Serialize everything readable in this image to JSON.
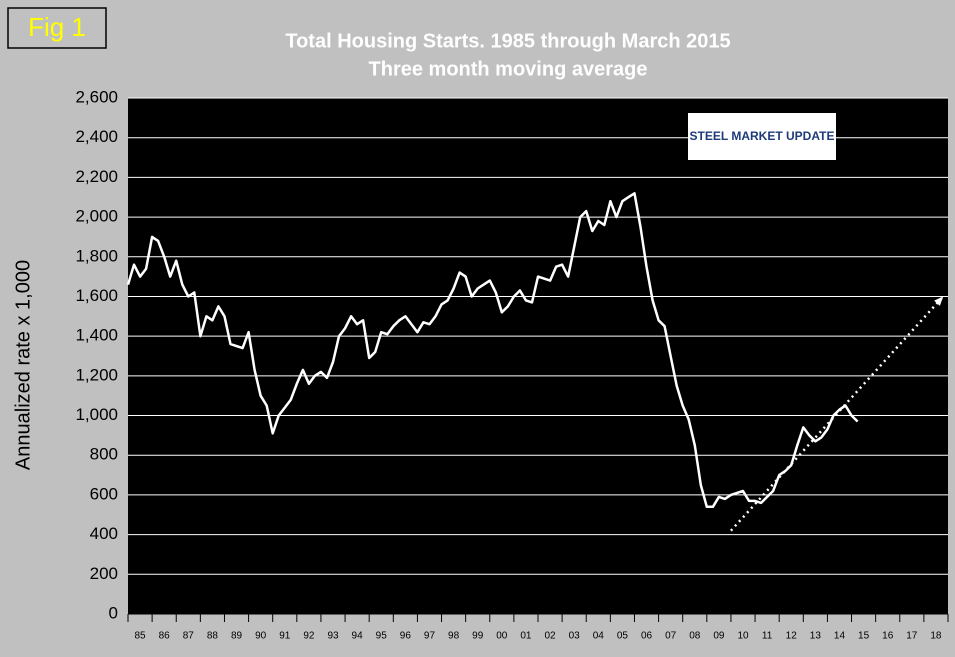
{
  "chart_data": {
    "type": "line",
    "label": "Fig 1",
    "title": "Total Housing Starts. 1985 through March 2015",
    "subtitle": "Three month moving average",
    "ylabel": "Annualized rate x 1,000",
    "logo": "STEEL MARKET UPDATE",
    "color": "#ffffff",
    "x": [
      1985,
      1985.25,
      1985.5,
      1985.75,
      1986,
      1986.25,
      1986.5,
      1986.75,
      1987,
      1987.25,
      1987.5,
      1987.75,
      1988,
      1988.25,
      1988.5,
      1988.75,
      1989,
      1989.25,
      1989.5,
      1989.75,
      1990,
      1990.25,
      1990.5,
      1990.75,
      1991,
      1991.25,
      1991.5,
      1991.75,
      1992,
      1992.25,
      1992.5,
      1992.75,
      1993,
      1993.25,
      1993.5,
      1993.75,
      1994,
      1994.25,
      1994.5,
      1994.75,
      1995,
      1995.25,
      1995.5,
      1995.75,
      1996,
      1996.25,
      1996.5,
      1996.75,
      1997,
      1997.25,
      1997.5,
      1997.75,
      1998,
      1998.25,
      1998.5,
      1998.75,
      1999,
      1999.25,
      1999.5,
      1999.75,
      2000,
      2000.25,
      2000.5,
      2000.75,
      2001,
      2001.25,
      2001.5,
      2001.75,
      2002,
      2002.25,
      2002.5,
      2002.75,
      2003,
      2003.25,
      2003.5,
      2003.75,
      2004,
      2004.25,
      2004.5,
      2004.75,
      2005,
      2005.25,
      2005.5,
      2005.75,
      2006,
      2006.25,
      2006.5,
      2006.75,
      2007,
      2007.25,
      2007.5,
      2007.75,
      2008,
      2008.25,
      2008.5,
      2008.75,
      2009,
      2009.25,
      2009.5,
      2009.75,
      2010,
      2010.25,
      2010.5,
      2010.75,
      2011,
      2011.25,
      2011.5,
      2011.75,
      2012,
      2012.25,
      2012.5,
      2012.75,
      2013,
      2013.25,
      2013.5,
      2013.75,
      2014,
      2014.25,
      2014.5,
      2014.75,
      2015,
      2015.25
    ],
    "values": [
      1660,
      1760,
      1700,
      1740,
      1900,
      1880,
      1800,
      1700,
      1780,
      1660,
      1600,
      1620,
      1400,
      1500,
      1480,
      1550,
      1500,
      1360,
      1350,
      1340,
      1420,
      1230,
      1100,
      1050,
      910,
      1000,
      1040,
      1080,
      1160,
      1230,
      1160,
      1200,
      1220,
      1190,
      1270,
      1400,
      1440,
      1500,
      1460,
      1480,
      1290,
      1320,
      1420,
      1410,
      1450,
      1480,
      1500,
      1460,
      1420,
      1470,
      1460,
      1500,
      1560,
      1580,
      1640,
      1720,
      1700,
      1600,
      1640,
      1660,
      1680,
      1620,
      1520,
      1550,
      1600,
      1630,
      1580,
      1570,
      1700,
      1690,
      1680,
      1750,
      1760,
      1700,
      1850,
      2000,
      2030,
      1930,
      1980,
      1960,
      2080,
      2000,
      2080,
      2100,
      2120,
      1950,
      1750,
      1580,
      1480,
      1450,
      1300,
      1150,
      1050,
      980,
      850,
      650,
      540,
      540,
      590,
      580,
      600,
      610,
      620,
      570,
      570,
      560,
      590,
      620,
      700,
      720,
      750,
      850,
      940,
      900,
      870,
      890,
      930,
      1000,
      1030,
      1050,
      1000,
      970
    ],
    "trend_x": [
      2010,
      2018.8
    ],
    "trend_values": [
      420,
      1600
    ],
    "xlim": [
      1985,
      2019
    ],
    "xticks": [
      {
        "value": 1985,
        "label": "85"
      },
      {
        "value": 1986,
        "label": "86"
      },
      {
        "value": 1987,
        "label": "87"
      },
      {
        "value": 1988,
        "label": "88"
      },
      {
        "value": 1989,
        "label": "89"
      },
      {
        "value": 1990,
        "label": "90"
      },
      {
        "value": 1991,
        "label": "91"
      },
      {
        "value": 1992,
        "label": "92"
      },
      {
        "value": 1993,
        "label": "93"
      },
      {
        "value": 1994,
        "label": "94"
      },
      {
        "value": 1995,
        "label": "95"
      },
      {
        "value": 1996,
        "label": "96"
      },
      {
        "value": 1997,
        "label": "97"
      },
      {
        "value": 1998,
        "label": "98"
      },
      {
        "value": 1999,
        "label": "99"
      },
      {
        "value": 2000,
        "label": "00"
      },
      {
        "value": 2001,
        "label": "01"
      },
      {
        "value": 2002,
        "label": "02"
      },
      {
        "value": 2003,
        "label": "03"
      },
      {
        "value": 2004,
        "label": "04"
      },
      {
        "value": 2005,
        "label": "05"
      },
      {
        "value": 2006,
        "label": "06"
      },
      {
        "value": 2007,
        "label": "07"
      },
      {
        "value": 2008,
        "label": "08"
      },
      {
        "value": 2009,
        "label": "09"
      },
      {
        "value": 2010,
        "label": "10"
      },
      {
        "value": 2011,
        "label": "11"
      },
      {
        "value": 2012,
        "label": "12"
      },
      {
        "value": 2013,
        "label": "13"
      },
      {
        "value": 2014,
        "label": "14"
      },
      {
        "value": 2015,
        "label": "15"
      },
      {
        "value": 2016,
        "label": "16"
      },
      {
        "value": 2017,
        "label": "17"
      },
      {
        "value": 2018,
        "label": "18"
      }
    ],
    "ylim": [
      0,
      2600
    ],
    "yticks": [
      0,
      {
        "value": 200,
        "label": "200"
      },
      {
        "value": 400,
        "label": "400"
      },
      {
        "value": 600,
        "label": "600"
      },
      {
        "value": 800,
        "label": "800"
      },
      {
        "value": 1000,
        "label": "1,000"
      },
      {
        "value": 1200,
        "label": "1,200"
      },
      {
        "value": 1400,
        "label": "1,400"
      },
      {
        "value": 1600,
        "label": "1,600"
      },
      {
        "value": 1800,
        "label": "1,800"
      },
      {
        "value": 2000,
        "label": "2,000"
      },
      {
        "value": 2200,
        "label": "2,200"
      },
      {
        "value": 2400,
        "label": "2,400"
      },
      {
        "value": 2600,
        "label": "2,600"
      }
    ],
    "grid": true
  }
}
